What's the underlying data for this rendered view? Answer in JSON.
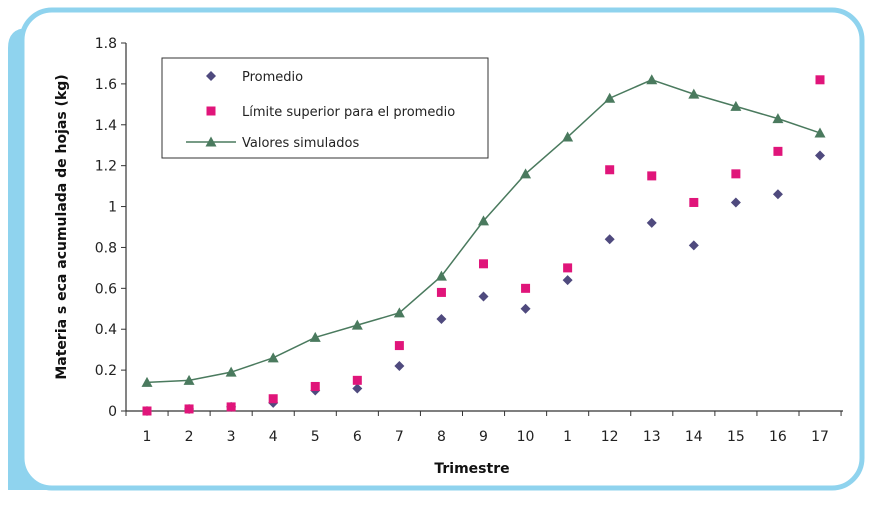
{
  "colors": {
    "frame": "#8fd3ee",
    "promedio": "#4f4a7e",
    "limite": "#e0157a",
    "simulados": "#4a7a5e",
    "axis": "#333333"
  },
  "chart_data": {
    "type": "line",
    "title": "",
    "xlabel": "Trimestre",
    "ylabel": "Materia s eca acumulada de hojas (kg)",
    "categories": [
      "1",
      "2",
      "3",
      "4",
      "5",
      "6",
      "7",
      "8",
      "9",
      "10",
      "1",
      "12",
      "13",
      "14",
      "15",
      "16",
      "17"
    ],
    "ylim": [
      0,
      1.8
    ],
    "yticks": [
      "0",
      "0.2",
      "0.4",
      "0.6",
      "0.8",
      "1",
      "1.2",
      "1.4",
      "1.6",
      "1.8"
    ],
    "grid": false,
    "legend_position": "top-left",
    "series": [
      {
        "name": "Promedio",
        "marker": "diamond",
        "line": false,
        "values": [
          0,
          0.01,
          0.02,
          0.04,
          0.1,
          0.11,
          0.22,
          0.45,
          0.56,
          0.5,
          0.64,
          0.84,
          0.92,
          0.81,
          1.02,
          1.06,
          1.25
        ]
      },
      {
        "name": "Límite superior para el promedio",
        "marker": "square",
        "line": false,
        "values": [
          0,
          0.01,
          0.02,
          0.06,
          0.12,
          0.15,
          0.32,
          0.58,
          0.72,
          0.6,
          0.7,
          1.18,
          1.15,
          1.02,
          1.16,
          1.27,
          1.62
        ]
      },
      {
        "name": "Valores simulados",
        "marker": "triangle",
        "line": true,
        "values": [
          0.14,
          0.15,
          0.19,
          0.26,
          0.36,
          0.42,
          0.48,
          0.66,
          0.93,
          1.16,
          1.34,
          1.53,
          1.62,
          1.55,
          1.49,
          1.43,
          1.36
        ]
      }
    ]
  }
}
